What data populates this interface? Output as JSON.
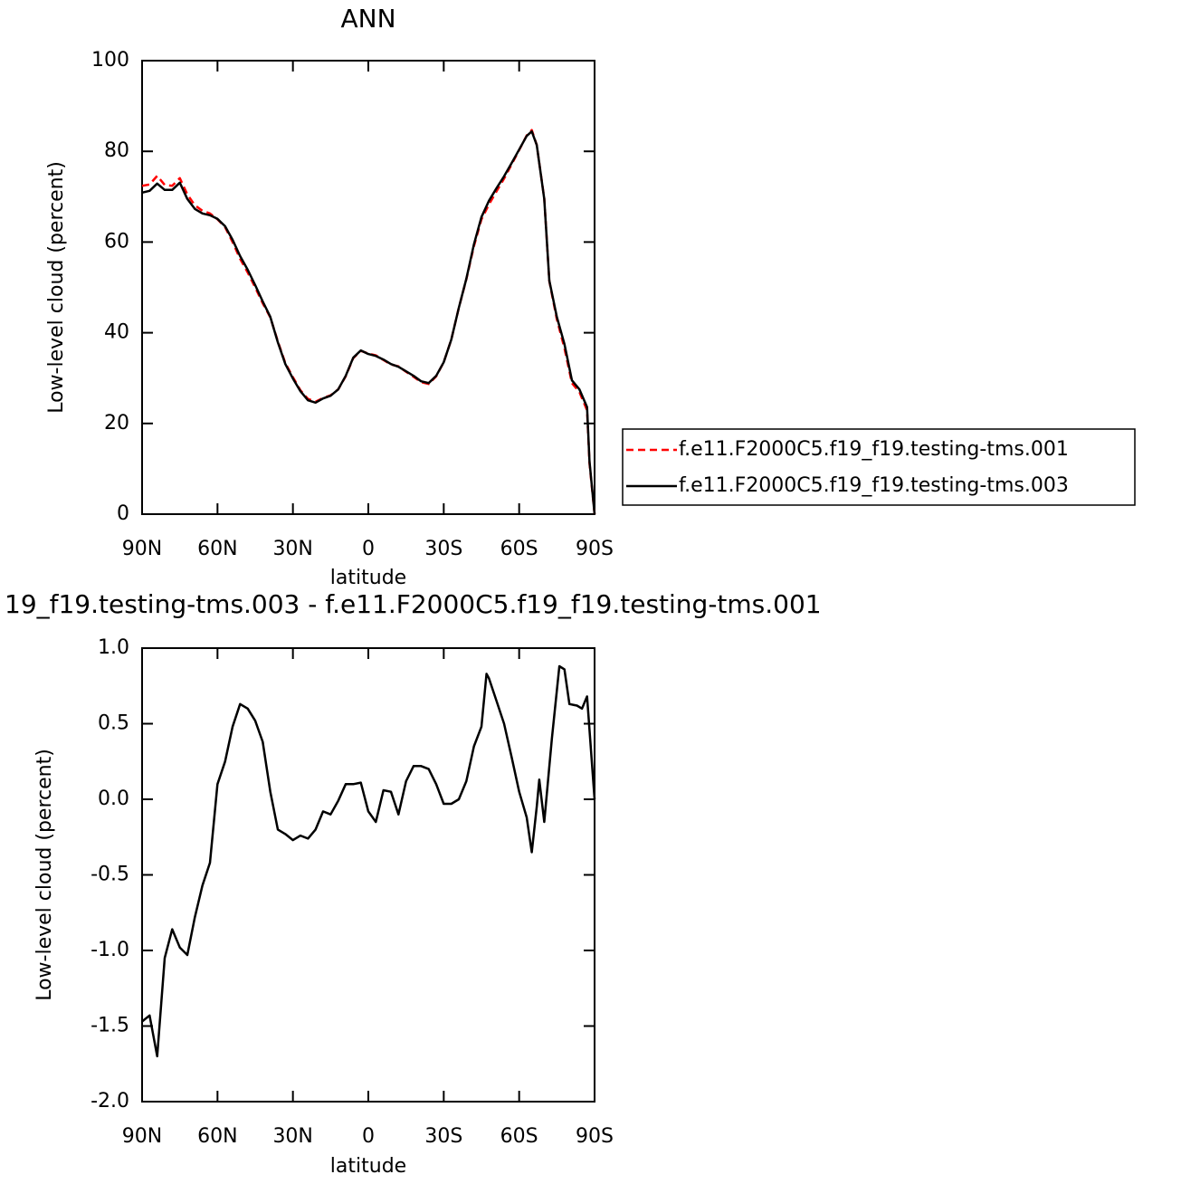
{
  "chart_data": [
    {
      "type": "line",
      "title": "ANN",
      "xlabel": "latitude",
      "ylabel": "Low-level cloud (percent)",
      "x": [
        90,
        87,
        84,
        81,
        78,
        75,
        72,
        69,
        66,
        63,
        60,
        57,
        54,
        51,
        48,
        45,
        42,
        39,
        36,
        33,
        30,
        27,
        24,
        21,
        18,
        15,
        12,
        9,
        6,
        3,
        0,
        -3,
        -6,
        -9,
        -12,
        -15,
        -18,
        -21,
        -24,
        -27,
        -30,
        -33,
        -36,
        -39,
        -42,
        -45,
        -48,
        -51,
        -54,
        -57,
        -60,
        -63,
        -65,
        -67,
        -70,
        -72,
        -75,
        -78,
        -81,
        -84,
        -87,
        -88,
        -90
      ],
      "series": [
        {
          "name": "f.e11.F2000C5.f19_f19.testing-tms.001",
          "color": "#ff0000",
          "linestyle": "dashed",
          "values": [
            72.4,
            72.7,
            74.6,
            72.6,
            72.4,
            74.1,
            70.5,
            68.1,
            66.9,
            66.3,
            65.0,
            63.3,
            60.0,
            56.3,
            53.3,
            50.0,
            46.5,
            43.4,
            38.1,
            33.3,
            30.2,
            27.3,
            25.4,
            24.8,
            25.6,
            26.2,
            27.5,
            30.4,
            34.4,
            36.0,
            35.4,
            35.0,
            34.0,
            33.0,
            32.6,
            31.4,
            30.3,
            29.1,
            28.7,
            30.4,
            33.5,
            38.5,
            45.5,
            51.8,
            59.1,
            65.0,
            68.3,
            71.2,
            74.0,
            77.1,
            80.3,
            83.5,
            84.7,
            81.4,
            69.6,
            51.4,
            43.0,
            36.6,
            28.9,
            26.9,
            22.9,
            11.2,
            0
          ]
        },
        {
          "name": "f.e11.F2000C5.f19_f19.testing-tms.003",
          "color": "#000000",
          "linestyle": "solid",
          "values": [
            70.9,
            71.3,
            72.9,
            71.5,
            71.5,
            73.1,
            69.5,
            67.3,
            66.3,
            65.9,
            65.1,
            63.5,
            60.5,
            56.9,
            53.9,
            50.5,
            46.9,
            43.5,
            37.9,
            33.1,
            29.9,
            27.1,
            25.1,
            24.6,
            25.5,
            26.1,
            27.5,
            30.5,
            34.5,
            36.1,
            35.3,
            34.9,
            34.1,
            33.1,
            32.5,
            31.5,
            30.5,
            29.3,
            28.9,
            30.5,
            33.5,
            38.5,
            45.5,
            51.9,
            59.5,
            65.5,
            69.1,
            71.9,
            74.5,
            77.4,
            80.4,
            83.4,
            84.4,
            81.4,
            69.5,
            51.5,
            43.5,
            37.5,
            29.5,
            27.5,
            23.6,
            11.6,
            0
          ]
        }
      ],
      "xlim": [
        90,
        -90
      ],
      "xticks": [
        {
          "value": 90,
          "label": "90N"
        },
        {
          "value": 60,
          "label": "60N"
        },
        {
          "value": 30,
          "label": "30N"
        },
        0,
        {
          "value": -30,
          "label": "30S"
        },
        {
          "value": -60,
          "label": "60S"
        },
        {
          "value": -90,
          "label": "90S"
        }
      ],
      "ylim": [
        0,
        100
      ],
      "yticks": [
        0,
        20,
        40,
        60,
        80,
        100
      ],
      "legend": "right"
    },
    {
      "type": "line",
      "title": "19_f19.testing-tms.003 - f.e11.F2000C5.f19_f19.testing-tms.001",
      "xlabel": "latitude",
      "ylabel": "Low-level cloud (percent)",
      "x": [
        90,
        87,
        84,
        81,
        78,
        75,
        72,
        69,
        66,
        63,
        60,
        57,
        54,
        51,
        48,
        45,
        42,
        39,
        36,
        33,
        30,
        27,
        24,
        21,
        18,
        15,
        12,
        9,
        6,
        3,
        0,
        -3,
        -6,
        -9,
        -12,
        -15,
        -18,
        -21,
        -24,
        -27,
        -30,
        -33,
        -36,
        -39,
        -42,
        -45,
        -47,
        -48,
        -51,
        -54,
        -57,
        -60,
        -63,
        -65,
        -67,
        -68,
        -70,
        -73,
        -76,
        -78,
        -80,
        -83,
        -85,
        -87,
        -90
      ],
      "series": [
        {
          "color": "#000000",
          "linestyle": "solid",
          "values": [
            -1.47,
            -1.43,
            -1.7,
            -1.05,
            -0.86,
            -0.98,
            -1.03,
            -0.78,
            -0.57,
            -0.42,
            0.1,
            0.25,
            0.48,
            0.63,
            0.6,
            0.52,
            0.38,
            0.05,
            -0.2,
            -0.23,
            -0.27,
            -0.24,
            -0.26,
            -0.2,
            -0.08,
            -0.1,
            -0.01,
            0.1,
            0.1,
            0.11,
            -0.08,
            -0.15,
            0.06,
            0.05,
            -0.1,
            0.12,
            0.22,
            0.22,
            0.2,
            0.1,
            -0.03,
            -0.03,
            0.0,
            0.12,
            0.35,
            0.48,
            0.83,
            0.8,
            0.65,
            0.5,
            0.28,
            0.05,
            -0.12,
            -0.35,
            -0.05,
            0.13,
            -0.15,
            0.4,
            0.88,
            0.86,
            0.63,
            0.62,
            0.6,
            0.68,
            0.0
          ]
        }
      ],
      "xlim": [
        90,
        -90
      ],
      "xticks": [
        {
          "value": 90,
          "label": "90N"
        },
        {
          "value": 60,
          "label": "60N"
        },
        {
          "value": 30,
          "label": "30N"
        },
        0,
        {
          "value": -30,
          "label": "30S"
        },
        {
          "value": -60,
          "label": "60S"
        },
        {
          "value": -90,
          "label": "90S"
        }
      ],
      "ylim": [
        -2.0,
        1.0
      ],
      "yticks": [
        {
          "value": -2.0,
          "label": "-2.0"
        },
        -1.5,
        {
          "value": -1.0,
          "label": "-1.0"
        },
        -0.5,
        {
          "value": 0.0,
          "label": "0.0"
        },
        0.5,
        {
          "value": 1.0,
          "label": "1.0"
        }
      ]
    }
  ]
}
